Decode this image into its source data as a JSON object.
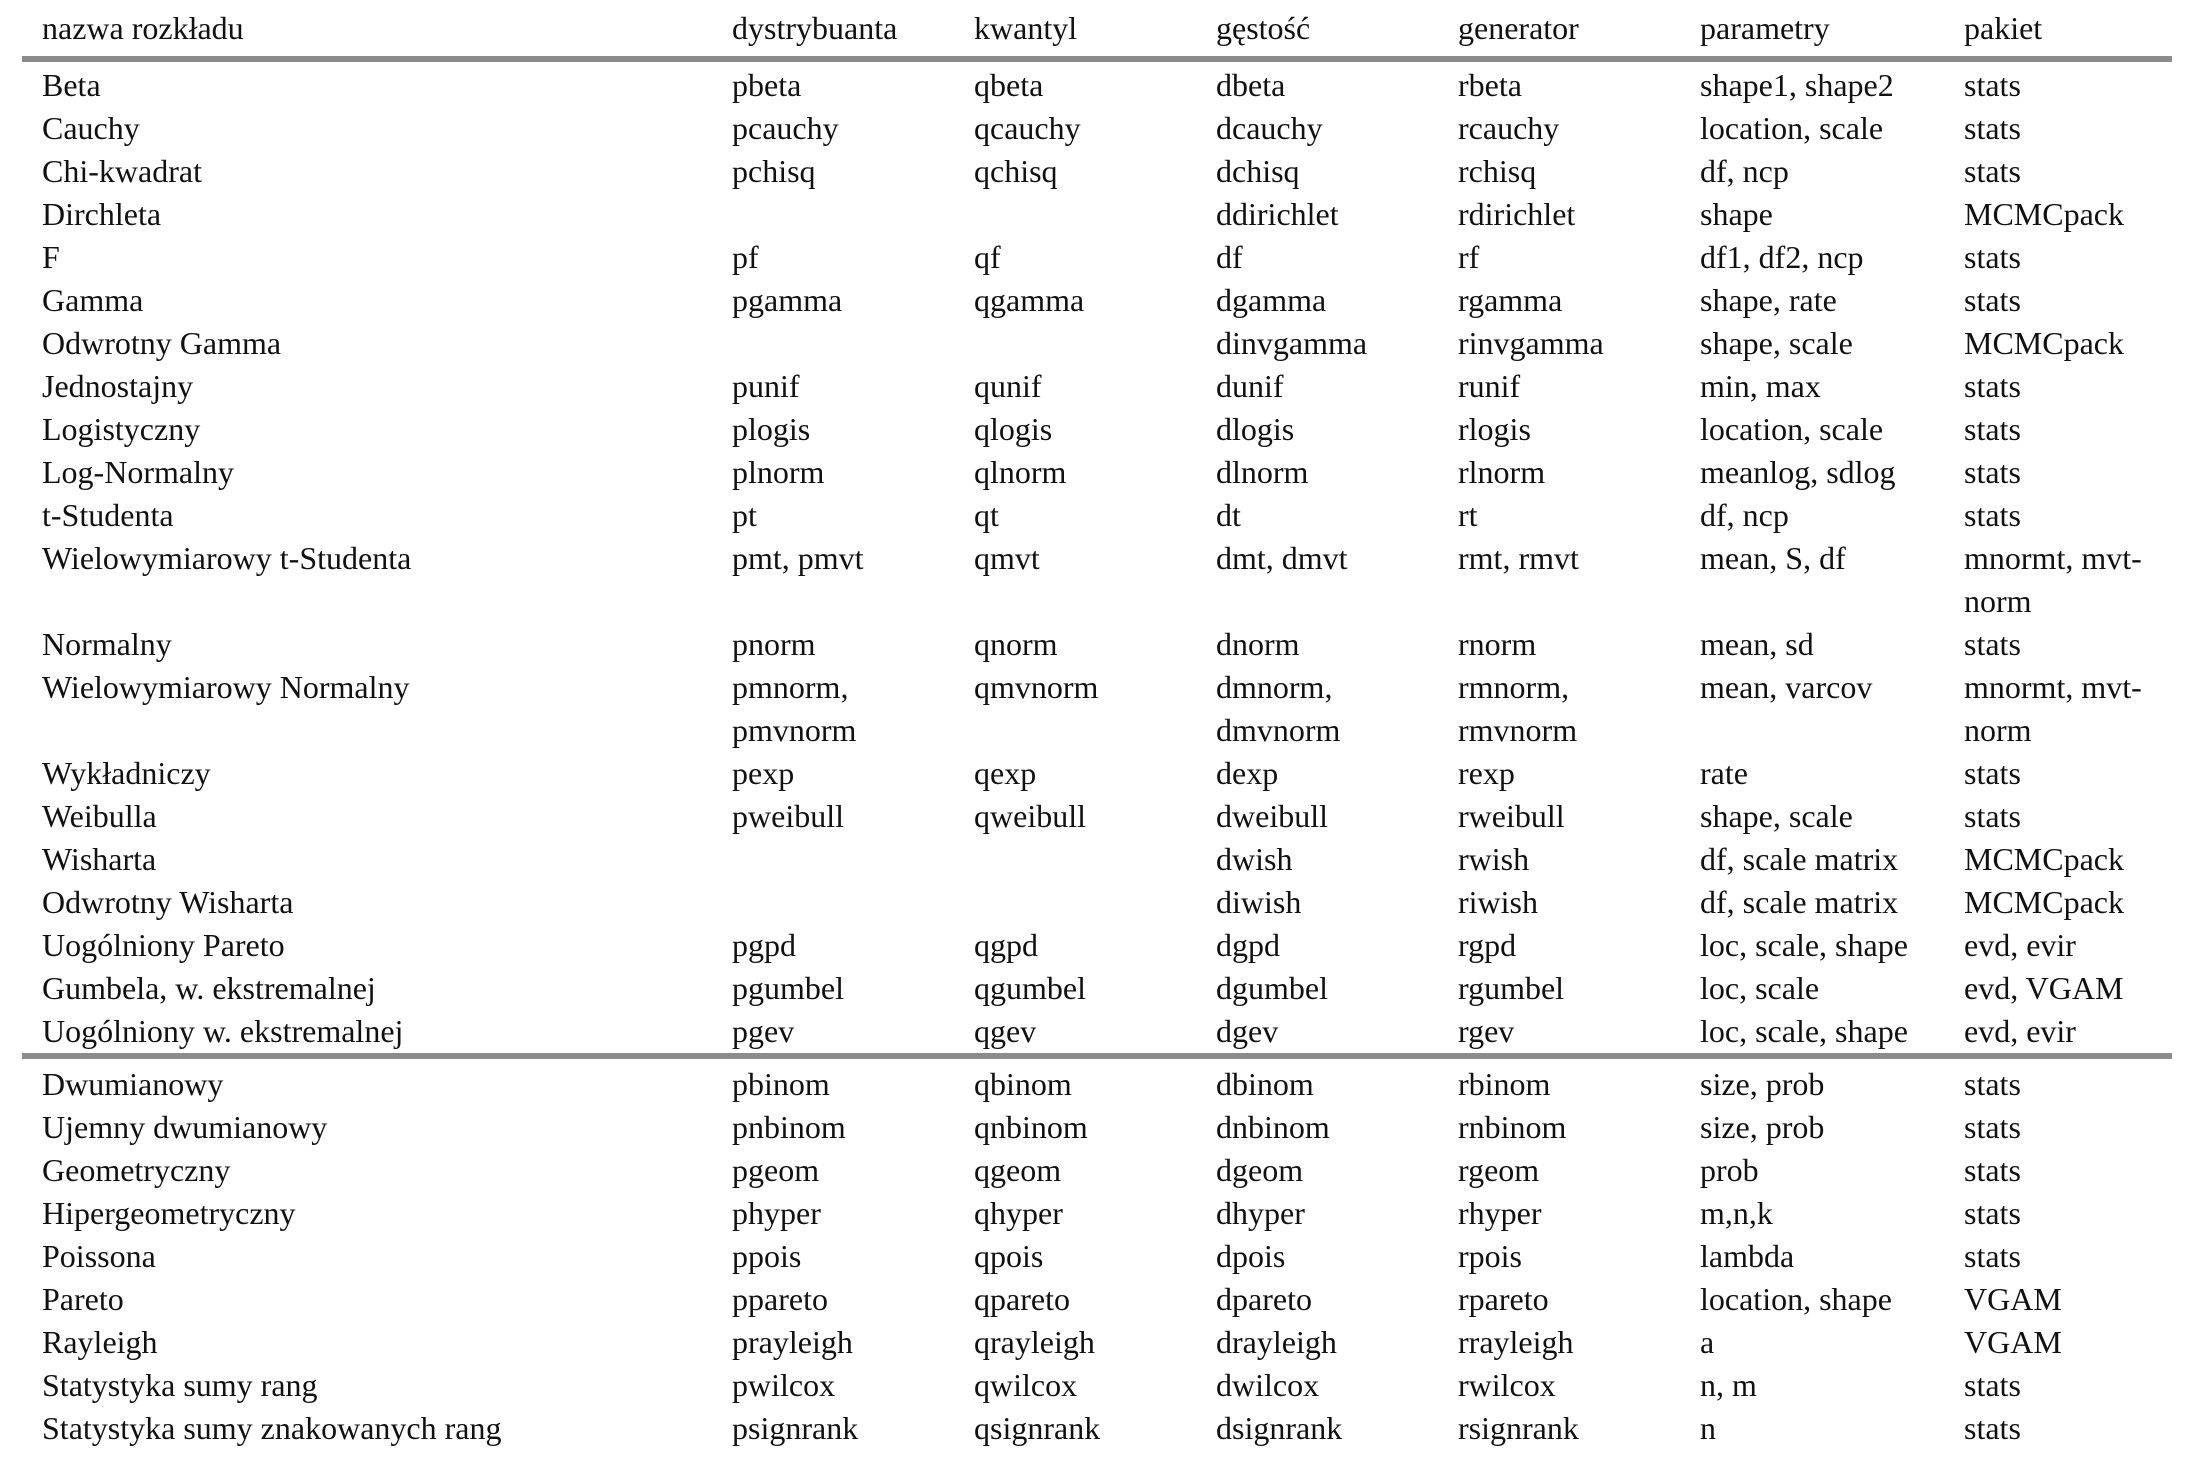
{
  "table": {
    "headers": [
      "nazwa rozkładu",
      "dystrybuanta",
      "kwantyl",
      "gęstość",
      "generator",
      "parametry",
      "pakiet"
    ],
    "continuous": [
      [
        "Beta",
        "pbeta",
        "qbeta",
        "dbeta",
        "rbeta",
        "shape1, shape2",
        "stats"
      ],
      [
        "Cauchy",
        "pcauchy",
        "qcauchy",
        "dcauchy",
        "rcauchy",
        "location, scale",
        "stats"
      ],
      [
        "Chi-kwadrat",
        "pchisq",
        "qchisq",
        "dchisq",
        "rchisq",
        "df, ncp",
        "stats"
      ],
      [
        "Dirchleta",
        "",
        "",
        "ddirichlet",
        "rdirichlet",
        "shape",
        "MCMCpack"
      ],
      [
        "F",
        "pf",
        "qf",
        "df",
        "rf",
        "df1, df2, ncp",
        "stats"
      ],
      [
        "Gamma",
        "pgamma",
        "qgamma",
        "dgamma",
        "rgamma",
        "shape, rate",
        "stats"
      ],
      [
        "Odwrotny Gamma",
        "",
        "",
        "dinvgamma",
        "rinvgamma",
        "shape, scale",
        "MCMCpack"
      ],
      [
        "Jednostajny",
        "punif",
        "qunif",
        "dunif",
        "runif",
        "min, max",
        "stats"
      ],
      [
        "Logistyczny",
        "plogis",
        "qlogis",
        "dlogis",
        "rlogis",
        "location, scale",
        "stats"
      ],
      [
        "Log-Normalny",
        "plnorm",
        "qlnorm",
        "dlnorm",
        "rlnorm",
        "meanlog, sdlog",
        "stats"
      ],
      [
        "t-Studenta",
        "pt",
        "qt",
        "dt",
        "rt",
        "df, ncp",
        "stats"
      ],
      [
        "Wielowymiarowy t-Studenta",
        "pmt, pmvt",
        "qmvt",
        "dmt, dmvt",
        "rmt, rmvt",
        "mean, S, df",
        "mnormt, mvt-\nnorm"
      ],
      [
        "Normalny",
        "pnorm",
        "qnorm",
        "dnorm",
        "rnorm",
        "mean, sd",
        "stats"
      ],
      [
        "Wielowymiarowy Normalny",
        "pmnorm,\npmvnorm",
        "qmvnorm",
        "dmnorm,\ndmvnorm",
        "rmnorm,\nrmvnorm",
        "mean, varcov",
        "mnormt, mvt-\nnorm"
      ],
      [
        "Wykładniczy",
        "pexp",
        "qexp",
        "dexp",
        "rexp",
        "rate",
        "stats"
      ],
      [
        "Weibulla",
        "pweibull",
        "qweibull",
        "dweibull",
        "rweibull",
        "shape, scale",
        "stats"
      ],
      [
        "Wisharta",
        "",
        "",
        "dwish",
        "rwish",
        "df, scale matrix",
        "MCMCpack"
      ],
      [
        "Odwrotny Wisharta",
        "",
        "",
        "diwish",
        "riwish",
        "df, scale matrix",
        "MCMCpack"
      ],
      [
        "Uogólniony Pareto",
        "pgpd",
        "qgpd",
        "dgpd",
        "rgpd",
        "loc, scale, shape",
        "evd, evir"
      ],
      [
        "Gumbela, w. ekstremalnej",
        "pgumbel",
        "qgumbel",
        "dgumbel",
        "rgumbel",
        "loc, scale",
        "evd, VGAM"
      ],
      [
        "Uogólniony w. ekstremalnej",
        "pgev",
        "qgev",
        "dgev",
        "rgev",
        "loc, scale, shape",
        "evd, evir"
      ]
    ],
    "discrete": [
      [
        "Dwumianowy",
        "pbinom",
        "qbinom",
        "dbinom",
        "rbinom",
        "size, prob",
        "stats"
      ],
      [
        "Ujemny dwumianowy",
        "pnbinom",
        "qnbinom",
        "dnbinom",
        "rnbinom",
        "size, prob",
        "stats"
      ],
      [
        "Geometryczny",
        "pgeom",
        "qgeom",
        "dgeom",
        "rgeom",
        "prob",
        "stats"
      ],
      [
        "Hipergeometryczny",
        "phyper",
        "qhyper",
        "dhyper",
        "rhyper",
        "m,n,k",
        "stats"
      ],
      [
        "Poissona",
        "ppois",
        "qpois",
        "dpois",
        "rpois",
        "lambda",
        "stats"
      ],
      [
        "Pareto",
        "ppareto",
        "qpareto",
        "dpareto",
        "rpareto",
        "location, shape",
        "VGAM"
      ],
      [
        "Rayleigh",
        "prayleigh",
        "qrayleigh",
        "drayleigh",
        "rrayleigh",
        "a",
        "VGAM"
      ],
      [
        "Statystyka sumy rang",
        "pwilcox",
        "qwilcox",
        "dwilcox",
        "rwilcox",
        "n, m",
        "stats"
      ],
      [
        "Statystyka sumy znakowanych rang",
        "psignrank",
        "qsignrank",
        "dsignrank",
        "rsignrank",
        "n",
        "stats"
      ]
    ]
  }
}
